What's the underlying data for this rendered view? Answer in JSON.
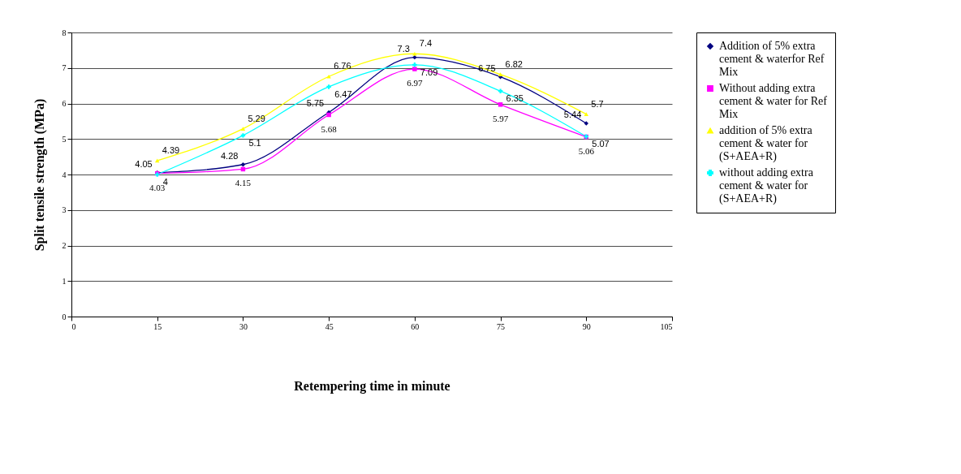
{
  "chart_data": {
    "type": "line",
    "xlabel": "Retempering time in minute",
    "ylabel": "Split tensile strength (MPa)",
    "x": [
      15,
      30,
      45,
      60,
      75,
      90
    ],
    "xlim": [
      0,
      105
    ],
    "xticks": [
      0,
      15,
      30,
      45,
      60,
      75,
      90,
      105
    ],
    "ylim": [
      0,
      8
    ],
    "yticks": [
      0,
      1,
      2,
      3,
      4,
      5,
      6,
      7,
      8
    ],
    "grid": "y",
    "legend": "right",
    "data_labels": true,
    "line_style": "solid",
    "series": [
      {
        "name": "Addition of 5% extra cement & waterfor Ref Mix",
        "color": "#000080",
        "marker": "diamond",
        "values": [
          4.05,
          4.28,
          5.75,
          7.3,
          6.75,
          5.44
        ]
      },
      {
        "name": "Without adding extra cement & water for Ref Mix",
        "color": "#ff00ff",
        "marker": "square",
        "values": [
          4.03,
          4.15,
          5.68,
          6.97,
          5.97,
          5.06
        ]
      },
      {
        "name": "addition of 5% extra cement & water for (S+AEA+R)",
        "color": "#ffff00",
        "marker": "triangle",
        "values": [
          4.39,
          5.29,
          6.76,
          7.4,
          6.82,
          5.7
        ]
      },
      {
        "name": "without adding extra cement & water for (S+AEA+R)",
        "color": "#00ffff",
        "marker": "cross",
        "values": [
          4,
          5.1,
          6.47,
          7.09,
          6.35,
          5.07
        ]
      }
    ]
  }
}
